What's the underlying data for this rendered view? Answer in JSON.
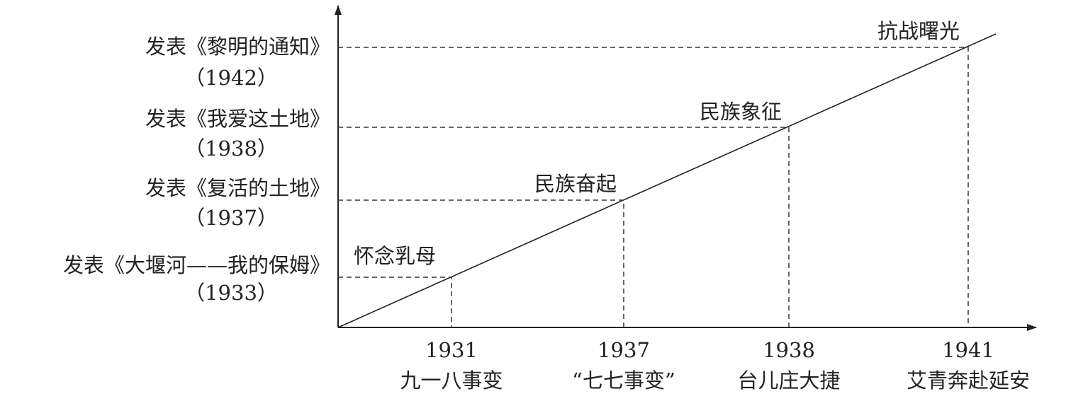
{
  "points": [
    {
      "label": "怀念乳母",
      "x_label": {
        "year": "1931",
        "event": "九一八事变"
      },
      "y_label": {
        "work": "发表《大堰河——我的保姆》",
        "year": "（1933）"
      }
    },
    {
      "label": "民族奋起",
      "x_label": {
        "year": "1937",
        "event": "“七七事变”"
      },
      "y_label": {
        "work": "发表《复活的土地》",
        "year": "（1937）"
      }
    },
    {
      "label": "民族象征",
      "x_label": {
        "year": "1938",
        "event": "台儿庄大捷"
      },
      "y_label": {
        "work": "发表《我爱这土地》",
        "year": "（1938）"
      }
    },
    {
      "label": "抗战曙光",
      "x_label": {
        "year": "1941",
        "event": "艾青奔赴延安"
      },
      "y_label": {
        "work": "发表《黎明的通知》",
        "year": "（1942）"
      }
    }
  ]
}
